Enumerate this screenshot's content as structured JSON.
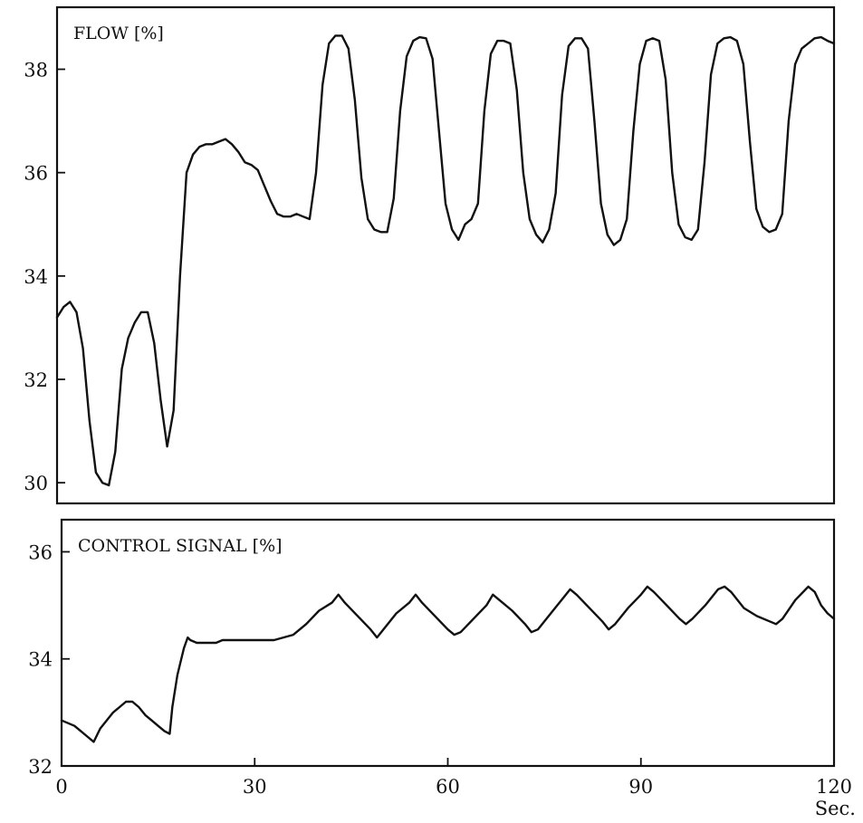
{
  "chart_data": [
    {
      "type": "line",
      "title": "FLOW [%]",
      "xlim": [
        0,
        120
      ],
      "ylim": [
        29.6,
        39.2
      ],
      "yticks": [
        "30",
        "32",
        "34",
        "36",
        "38"
      ],
      "grid": false,
      "series": [
        {
          "values": [
            [
              0,
              33.2
            ],
            [
              1,
              33.4
            ],
            [
              2,
              33.5
            ],
            [
              3,
              33.3
            ],
            [
              4,
              32.6
            ],
            [
              5,
              31.2
            ],
            [
              6,
              30.2
            ],
            [
              7,
              30.0
            ],
            [
              8,
              29.95
            ],
            [
              9,
              30.6
            ],
            [
              10,
              32.2
            ],
            [
              11,
              32.8
            ],
            [
              12,
              33.1
            ],
            [
              13,
              33.3
            ],
            [
              14,
              33.3
            ],
            [
              15,
              32.7
            ],
            [
              16,
              31.6
            ],
            [
              17,
              30.7
            ],
            [
              18,
              31.4
            ],
            [
              19,
              34.0
            ],
            [
              20,
              36.0
            ],
            [
              21,
              36.35
            ],
            [
              22,
              36.5
            ],
            [
              23,
              36.55
            ],
            [
              24,
              36.55
            ],
            [
              25,
              36.6
            ],
            [
              26,
              36.65
            ],
            [
              27,
              36.55
            ],
            [
              28,
              36.4
            ],
            [
              29,
              36.2
            ],
            [
              30,
              36.15
            ],
            [
              31,
              36.05
            ],
            [
              32,
              35.75
            ],
            [
              33,
              35.45
            ],
            [
              34,
              35.2
            ],
            [
              35,
              35.15
            ],
            [
              36,
              35.15
            ],
            [
              37,
              35.2
            ],
            [
              38,
              35.15
            ],
            [
              39,
              35.1
            ],
            [
              40,
              36.0
            ],
            [
              41,
              37.7
            ],
            [
              42,
              38.5
            ],
            [
              43,
              38.65
            ],
            [
              44,
              38.65
            ],
            [
              45,
              38.4
            ],
            [
              46,
              37.4
            ],
            [
              47,
              35.9
            ],
            [
              48,
              35.1
            ],
            [
              49,
              34.9
            ],
            [
              50,
              34.85
            ],
            [
              51,
              34.85
            ],
            [
              52,
              35.5
            ],
            [
              53,
              37.2
            ],
            [
              54,
              38.25
            ],
            [
              55,
              38.55
            ],
            [
              56,
              38.62
            ],
            [
              57,
              38.6
            ],
            [
              58,
              38.2
            ],
            [
              59,
              36.8
            ],
            [
              60,
              35.4
            ],
            [
              61,
              34.9
            ],
            [
              62,
              34.7
            ],
            [
              63,
              35.0
            ],
            [
              64,
              35.1
            ],
            [
              65,
              35.4
            ],
            [
              66,
              37.2
            ],
            [
              67,
              38.3
            ],
            [
              68,
              38.55
            ],
            [
              69,
              38.55
            ],
            [
              70,
              38.5
            ],
            [
              71,
              37.6
            ],
            [
              72,
              36.0
            ],
            [
              73,
              35.1
            ],
            [
              74,
              34.8
            ],
            [
              75,
              34.65
            ],
            [
              76,
              34.9
            ],
            [
              77,
              35.6
            ],
            [
              78,
              37.5
            ],
            [
              79,
              38.45
            ],
            [
              80,
              38.6
            ],
            [
              81,
              38.6
            ],
            [
              82,
              38.4
            ],
            [
              83,
              37.0
            ],
            [
              84,
              35.4
            ],
            [
              85,
              34.8
            ],
            [
              86,
              34.6
            ],
            [
              87,
              34.7
            ],
            [
              88,
              35.1
            ],
            [
              89,
              36.8
            ],
            [
              90,
              38.1
            ],
            [
              91,
              38.55
            ],
            [
              92,
              38.6
            ],
            [
              93,
              38.55
            ],
            [
              94,
              37.8
            ],
            [
              95,
              36.0
            ],
            [
              96,
              35.0
            ],
            [
              97,
              34.75
            ],
            [
              98,
              34.7
            ],
            [
              99,
              34.9
            ],
            [
              100,
              36.2
            ],
            [
              101,
              37.9
            ],
            [
              102,
              38.5
            ],
            [
              103,
              38.6
            ],
            [
              104,
              38.62
            ],
            [
              105,
              38.55
            ],
            [
              106,
              38.1
            ],
            [
              107,
              36.6
            ],
            [
              108,
              35.3
            ],
            [
              109,
              34.95
            ],
            [
              110,
              34.85
            ],
            [
              111,
              34.9
            ],
            [
              112,
              35.2
            ],
            [
              113,
              37.0
            ],
            [
              114,
              38.1
            ],
            [
              115,
              38.4
            ],
            [
              116,
              38.5
            ],
            [
              117,
              38.6
            ],
            [
              118,
              38.62
            ],
            [
              119,
              38.55
            ],
            [
              120,
              38.5
            ]
          ]
        }
      ]
    },
    {
      "type": "line",
      "title": "CONTROL SIGNAL  [%]",
      "xlim": [
        0,
        120
      ],
      "ylim": [
        32,
        36.6
      ],
      "yticks": [
        "32",
        "34",
        "36"
      ],
      "xticks": [
        "0",
        "30",
        "60",
        "90",
        "120"
      ],
      "xlabel": "Sec.",
      "grid": false,
      "series": [
        {
          "values": [
            [
              0,
              32.85
            ],
            [
              1,
              32.8
            ],
            [
              2,
              32.75
            ],
            [
              3,
              32.65
            ],
            [
              4,
              32.55
            ],
            [
              5,
              32.45
            ],
            [
              6,
              32.7
            ],
            [
              7,
              32.85
            ],
            [
              8,
              33.0
            ],
            [
              9,
              33.1
            ],
            [
              10,
              33.2
            ],
            [
              11,
              33.2
            ],
            [
              12,
              33.1
            ],
            [
              13,
              32.95
            ],
            [
              14,
              32.85
            ],
            [
              15,
              32.75
            ],
            [
              16,
              32.65
            ],
            [
              16.8,
              32.6
            ],
            [
              17.2,
              33.1
            ],
            [
              18,
              33.7
            ],
            [
              19,
              34.2
            ],
            [
              19.6,
              34.4
            ],
            [
              20,
              34.35
            ],
            [
              21,
              34.3
            ],
            [
              22,
              34.3
            ],
            [
              24,
              34.3
            ],
            [
              25,
              34.35
            ],
            [
              27,
              34.35
            ],
            [
              30,
              34.35
            ],
            [
              33,
              34.35
            ],
            [
              36,
              34.45
            ],
            [
              38,
              34.65
            ],
            [
              40,
              34.9
            ],
            [
              42,
              35.05
            ],
            [
              43,
              35.2
            ],
            [
              44,
              35.05
            ],
            [
              46,
              34.8
            ],
            [
              48,
              34.55
            ],
            [
              49,
              34.4
            ],
            [
              50,
              34.55
            ],
            [
              52,
              34.85
            ],
            [
              54,
              35.05
            ],
            [
              55,
              35.2
            ],
            [
              56,
              35.05
            ],
            [
              58,
              34.8
            ],
            [
              60,
              34.55
            ],
            [
              61,
              34.45
            ],
            [
              62,
              34.5
            ],
            [
              64,
              34.75
            ],
            [
              66,
              35.0
            ],
            [
              67,
              35.2
            ],
            [
              68,
              35.1
            ],
            [
              70,
              34.9
            ],
            [
              72,
              34.65
            ],
            [
              73,
              34.5
            ],
            [
              74,
              34.55
            ],
            [
              76,
              34.85
            ],
            [
              78,
              35.15
            ],
            [
              79,
              35.3
            ],
            [
              80,
              35.2
            ],
            [
              82,
              34.95
            ],
            [
              84,
              34.7
            ],
            [
              85,
              34.55
            ],
            [
              86,
              34.65
            ],
            [
              88,
              34.95
            ],
            [
              90,
              35.2
            ],
            [
              91,
              35.35
            ],
            [
              92,
              35.25
            ],
            [
              94,
              35.0
            ],
            [
              96,
              34.75
            ],
            [
              97,
              34.65
            ],
            [
              98,
              34.75
            ],
            [
              100,
              35.0
            ],
            [
              102,
              35.3
            ],
            [
              103,
              35.35
            ],
            [
              104,
              35.25
            ],
            [
              106,
              34.95
            ],
            [
              108,
              34.8
            ],
            [
              110,
              34.7
            ],
            [
              111,
              34.65
            ],
            [
              112,
              34.75
            ],
            [
              114,
              35.1
            ],
            [
              116,
              35.35
            ],
            [
              117,
              35.25
            ],
            [
              118,
              35.0
            ],
            [
              119,
              34.85
            ],
            [
              120,
              34.75
            ]
          ]
        }
      ]
    }
  ]
}
